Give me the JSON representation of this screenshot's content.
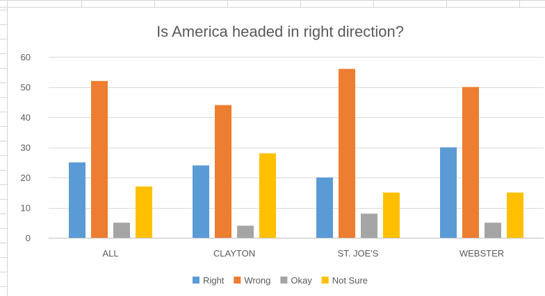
{
  "chart_data": {
    "type": "bar",
    "title": "Is America headed in right direction?",
    "xlabel": "",
    "ylabel": "",
    "categories": [
      "ALL",
      "CLAYTON",
      "ST. JOE'S",
      "WEBSTER"
    ],
    "series": [
      {
        "name": "Right",
        "color": "#5B9BD5",
        "values": [
          25,
          24,
          20,
          30
        ]
      },
      {
        "name": "Wrong",
        "color": "#ED7D31",
        "values": [
          52,
          44,
          56,
          50
        ]
      },
      {
        "name": "Okay",
        "color": "#A5A5A5",
        "values": [
          5,
          4,
          8,
          5
        ]
      },
      {
        "name": "Not Sure",
        "color": "#FFC000",
        "values": [
          17,
          28,
          15,
          15
        ]
      }
    ],
    "ylim": [
      0,
      60
    ],
    "yticks": [
      0,
      10,
      20,
      30,
      40,
      50,
      60
    ],
    "grid": true,
    "legend": "bottom"
  }
}
